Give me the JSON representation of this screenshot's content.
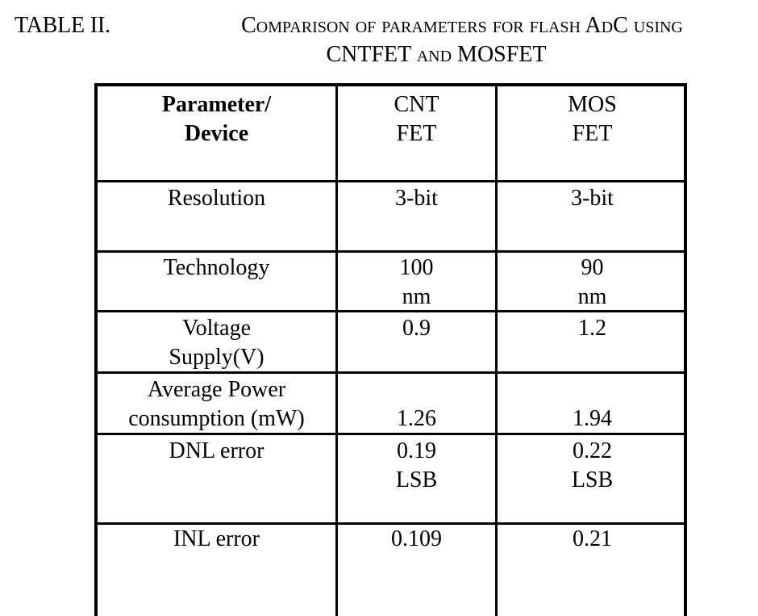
{
  "caption": {
    "label": "TABLE II.",
    "title_line1": "Comparison of parameters for flash AdC using",
    "title_line2": "CNTFET and MOSFET"
  },
  "table": {
    "header": {
      "col0": [
        "Parameter/",
        "Device"
      ],
      "col1": [
        "CNT",
        "FET"
      ],
      "col2": [
        "MOS",
        "FET"
      ]
    },
    "rows": [
      {
        "param": [
          "Resolution"
        ],
        "cnt": [
          "3-bit"
        ],
        "mos": [
          "3-bit"
        ]
      },
      {
        "param": [
          "Technology"
        ],
        "cnt": [
          "100",
          "nm"
        ],
        "mos": [
          "90",
          "nm"
        ]
      },
      {
        "param": [
          "Voltage",
          "Supply(V)"
        ],
        "cnt": [
          "0.9"
        ],
        "mos": [
          "1.2"
        ]
      },
      {
        "param": [
          "Average Power",
          "consumption (mW)"
        ],
        "cnt": [
          "",
          "1.26"
        ],
        "mos": [
          "",
          "1.94"
        ]
      },
      {
        "param": [
          "DNL error"
        ],
        "cnt": [
          "0.19",
          "LSB"
        ],
        "mos": [
          "0.22",
          "LSB"
        ]
      },
      {
        "param": [
          "INL error"
        ],
        "cnt": [
          "0.109"
        ],
        "mos": [
          "0.21"
        ]
      }
    ]
  }
}
